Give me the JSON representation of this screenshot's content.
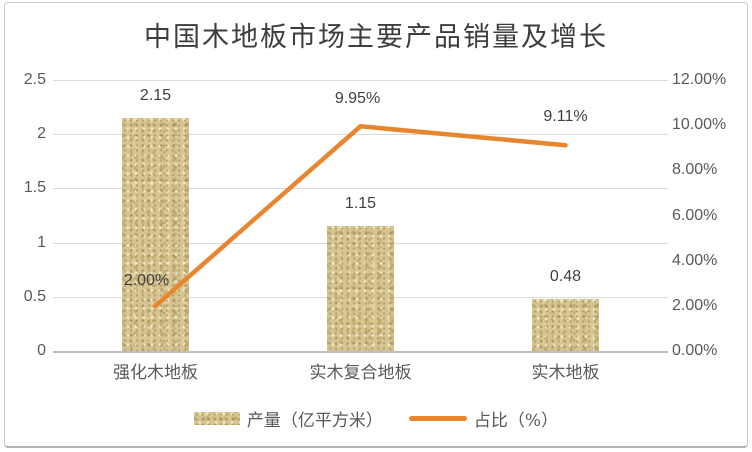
{
  "chart_data": {
    "type": "bar",
    "combo": "bar+line",
    "title": "中国木地板市场主要产品销量及增长",
    "categories": [
      "强化木地板",
      "实木复合地板",
      "实木地板"
    ],
    "series": [
      {
        "name": "产量（亿平方米）",
        "type": "bar",
        "axis": "left",
        "values": [
          2.15,
          1.15,
          0.48
        ],
        "labels": [
          "2.15",
          "1.15",
          "0.48"
        ],
        "color": "#d6c591",
        "fill_style": "sand-texture"
      },
      {
        "name": "占比（%）",
        "type": "line",
        "axis": "right",
        "values": [
          2.0,
          9.95,
          9.11
        ],
        "labels": [
          "2.00%",
          "9.95%",
          "9.11%"
        ],
        "color": "#e8862f"
      }
    ],
    "left_axis": {
      "min": 0,
      "max": 2.5,
      "ticks": [
        "2.5",
        "2",
        "1.5",
        "1",
        "0.5",
        "0"
      ]
    },
    "right_axis": {
      "min": 0,
      "max": 12,
      "ticks": [
        "12.00%",
        "10.00%",
        "8.00%",
        "6.00%",
        "4.00%",
        "2.00%",
        "0.00%"
      ]
    },
    "grid": true,
    "legend_position": "bottom",
    "colors": {
      "gridline": "#d9d9d9",
      "axis_line": "#bfbfbf",
      "tick_text": "#595959",
      "label_text": "#3f3f3f",
      "title_text": "#3d3d3d"
    }
  }
}
